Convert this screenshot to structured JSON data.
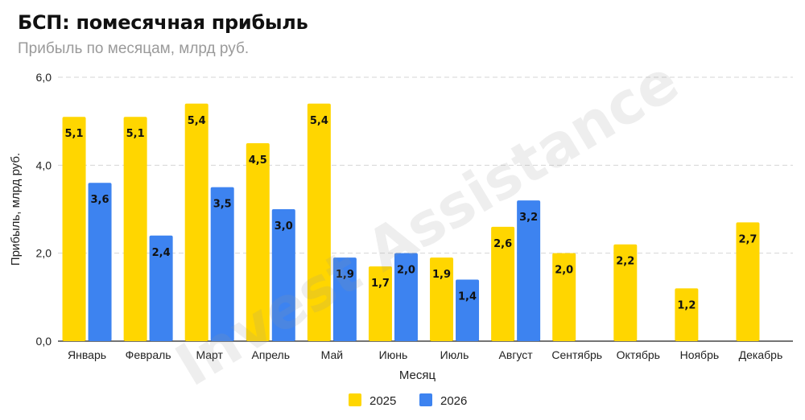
{
  "title": "БСП: помесячная прибыль",
  "subtitle": "Прибыль по месяцам, млрд руб.",
  "watermark": "Invest Assistance",
  "colors": {
    "s2025": "#FFD600",
    "s2026": "#3D83F0",
    "grid": "#d6d6d6",
    "axis": "#222222"
  },
  "chart_data": {
    "type": "bar",
    "categories": [
      "Январь",
      "Февраль",
      "Март",
      "Апрель",
      "Май",
      "Июнь",
      "Июль",
      "Август",
      "Сентябрь",
      "Октябрь",
      "Ноябрь",
      "Декабрь"
    ],
    "series": [
      {
        "name": "2025",
        "values": [
          5.1,
          5.1,
          5.4,
          4.5,
          5.4,
          1.7,
          1.9,
          2.6,
          2.0,
          2.2,
          1.2,
          2.7
        ]
      },
      {
        "name": "2026",
        "values": [
          3.6,
          2.4,
          3.5,
          3.0,
          1.9,
          2.0,
          1.4,
          3.2,
          null,
          null,
          null,
          null
        ]
      }
    ],
    "data_labels": {
      "2025": [
        "5,1",
        "5,1",
        "5,4",
        "4,5",
        "5,4",
        "1,7",
        "1,9",
        "2,6",
        "2,0",
        "2,2",
        "1,2",
        "2,7"
      ],
      "2026": [
        "3,6",
        "2,4",
        "3,5",
        "3,0",
        "1,9",
        "2,0",
        "1,4",
        "3,2"
      ]
    },
    "xlabel": "Месяц",
    "ylabel": "Прибыль, млрд руб.",
    "ylim": [
      0,
      6
    ],
    "yticks": [
      0,
      2,
      4,
      6
    ],
    "ytick_labels": [
      "0,0",
      "2,0",
      "4,0",
      "6,0"
    ],
    "grid": true,
    "legend_position": "bottom-center"
  }
}
